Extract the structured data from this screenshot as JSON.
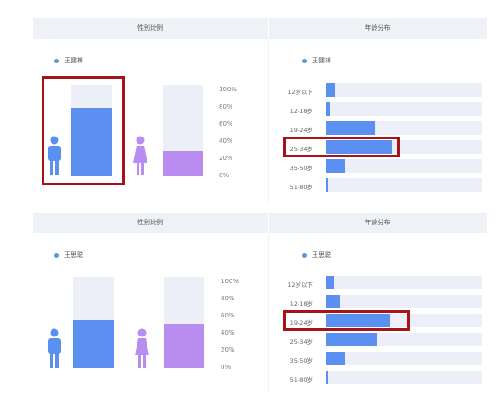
{
  "colors": {
    "male": "#5b8ff0",
    "female": "#b98cf0",
    "track": "#eceef8",
    "highlight": "#a6141a",
    "legend_dot": "#5b9bd5"
  },
  "ytick_labels": [
    "100%",
    "80%",
    "60%",
    "40%",
    "20%",
    "0%"
  ],
  "panels": [
    {
      "gender_title": "性别比例",
      "age_title": "年龄分布",
      "gender_legend": "王健林",
      "age_legend": "王健林",
      "gender_chart": {
        "type": "bar",
        "categories": [
          "男",
          "女"
        ],
        "values": [
          75,
          28
        ],
        "ylim": [
          0,
          100
        ]
      },
      "age_chart": {
        "type": "bar",
        "categories": [
          "12岁以下",
          "12-18岁",
          "19-24岁",
          "25-34岁",
          "35-50岁",
          "51-80岁"
        ],
        "values": [
          6,
          3,
          32,
          42,
          12,
          2
        ],
        "highlight": "25-34岁"
      }
    },
    {
      "gender_title": "性别比例",
      "age_title": "年龄分布",
      "gender_legend": "王思聪",
      "age_legend": "王思聪",
      "gender_chart": {
        "type": "bar",
        "categories": [
          "男",
          "女"
        ],
        "values": [
          52,
          49
        ],
        "ylim": [
          0,
          100
        ]
      },
      "age_chart": {
        "type": "bar",
        "categories": [
          "12岁以下",
          "12-18岁",
          "19-24岁",
          "25-34岁",
          "35-50岁",
          "51-80岁"
        ],
        "values": [
          5,
          9,
          41,
          33,
          12,
          2
        ],
        "highlight": "19-24岁"
      }
    }
  ],
  "chart_data": [
    {
      "type": "bar",
      "title": "性别比例",
      "series": [
        {
          "name": "王健林",
          "values": [
            75,
            28
          ]
        }
      ],
      "categories": [
        "男",
        "女"
      ],
      "ylim": [
        0,
        100
      ]
    },
    {
      "type": "bar",
      "title": "年龄分布",
      "series": [
        {
          "name": "王健林",
          "values": [
            6,
            3,
            32,
            42,
            12,
            2
          ]
        }
      ],
      "categories": [
        "12岁以下",
        "12-18岁",
        "19-24岁",
        "25-34岁",
        "35-50岁",
        "51-80岁"
      ]
    },
    {
      "type": "bar",
      "title": "性别比例",
      "series": [
        {
          "name": "王思聪",
          "values": [
            52,
            49
          ]
        }
      ],
      "categories": [
        "男",
        "女"
      ],
      "ylim": [
        0,
        100
      ]
    },
    {
      "type": "bar",
      "title": "年龄分布",
      "series": [
        {
          "name": "王思聪",
          "values": [
            5,
            9,
            41,
            33,
            12,
            2
          ]
        }
      ],
      "categories": [
        "12岁以下",
        "12-18岁",
        "19-24岁",
        "25-34岁",
        "35-50岁",
        "51-80岁"
      ]
    }
  ]
}
